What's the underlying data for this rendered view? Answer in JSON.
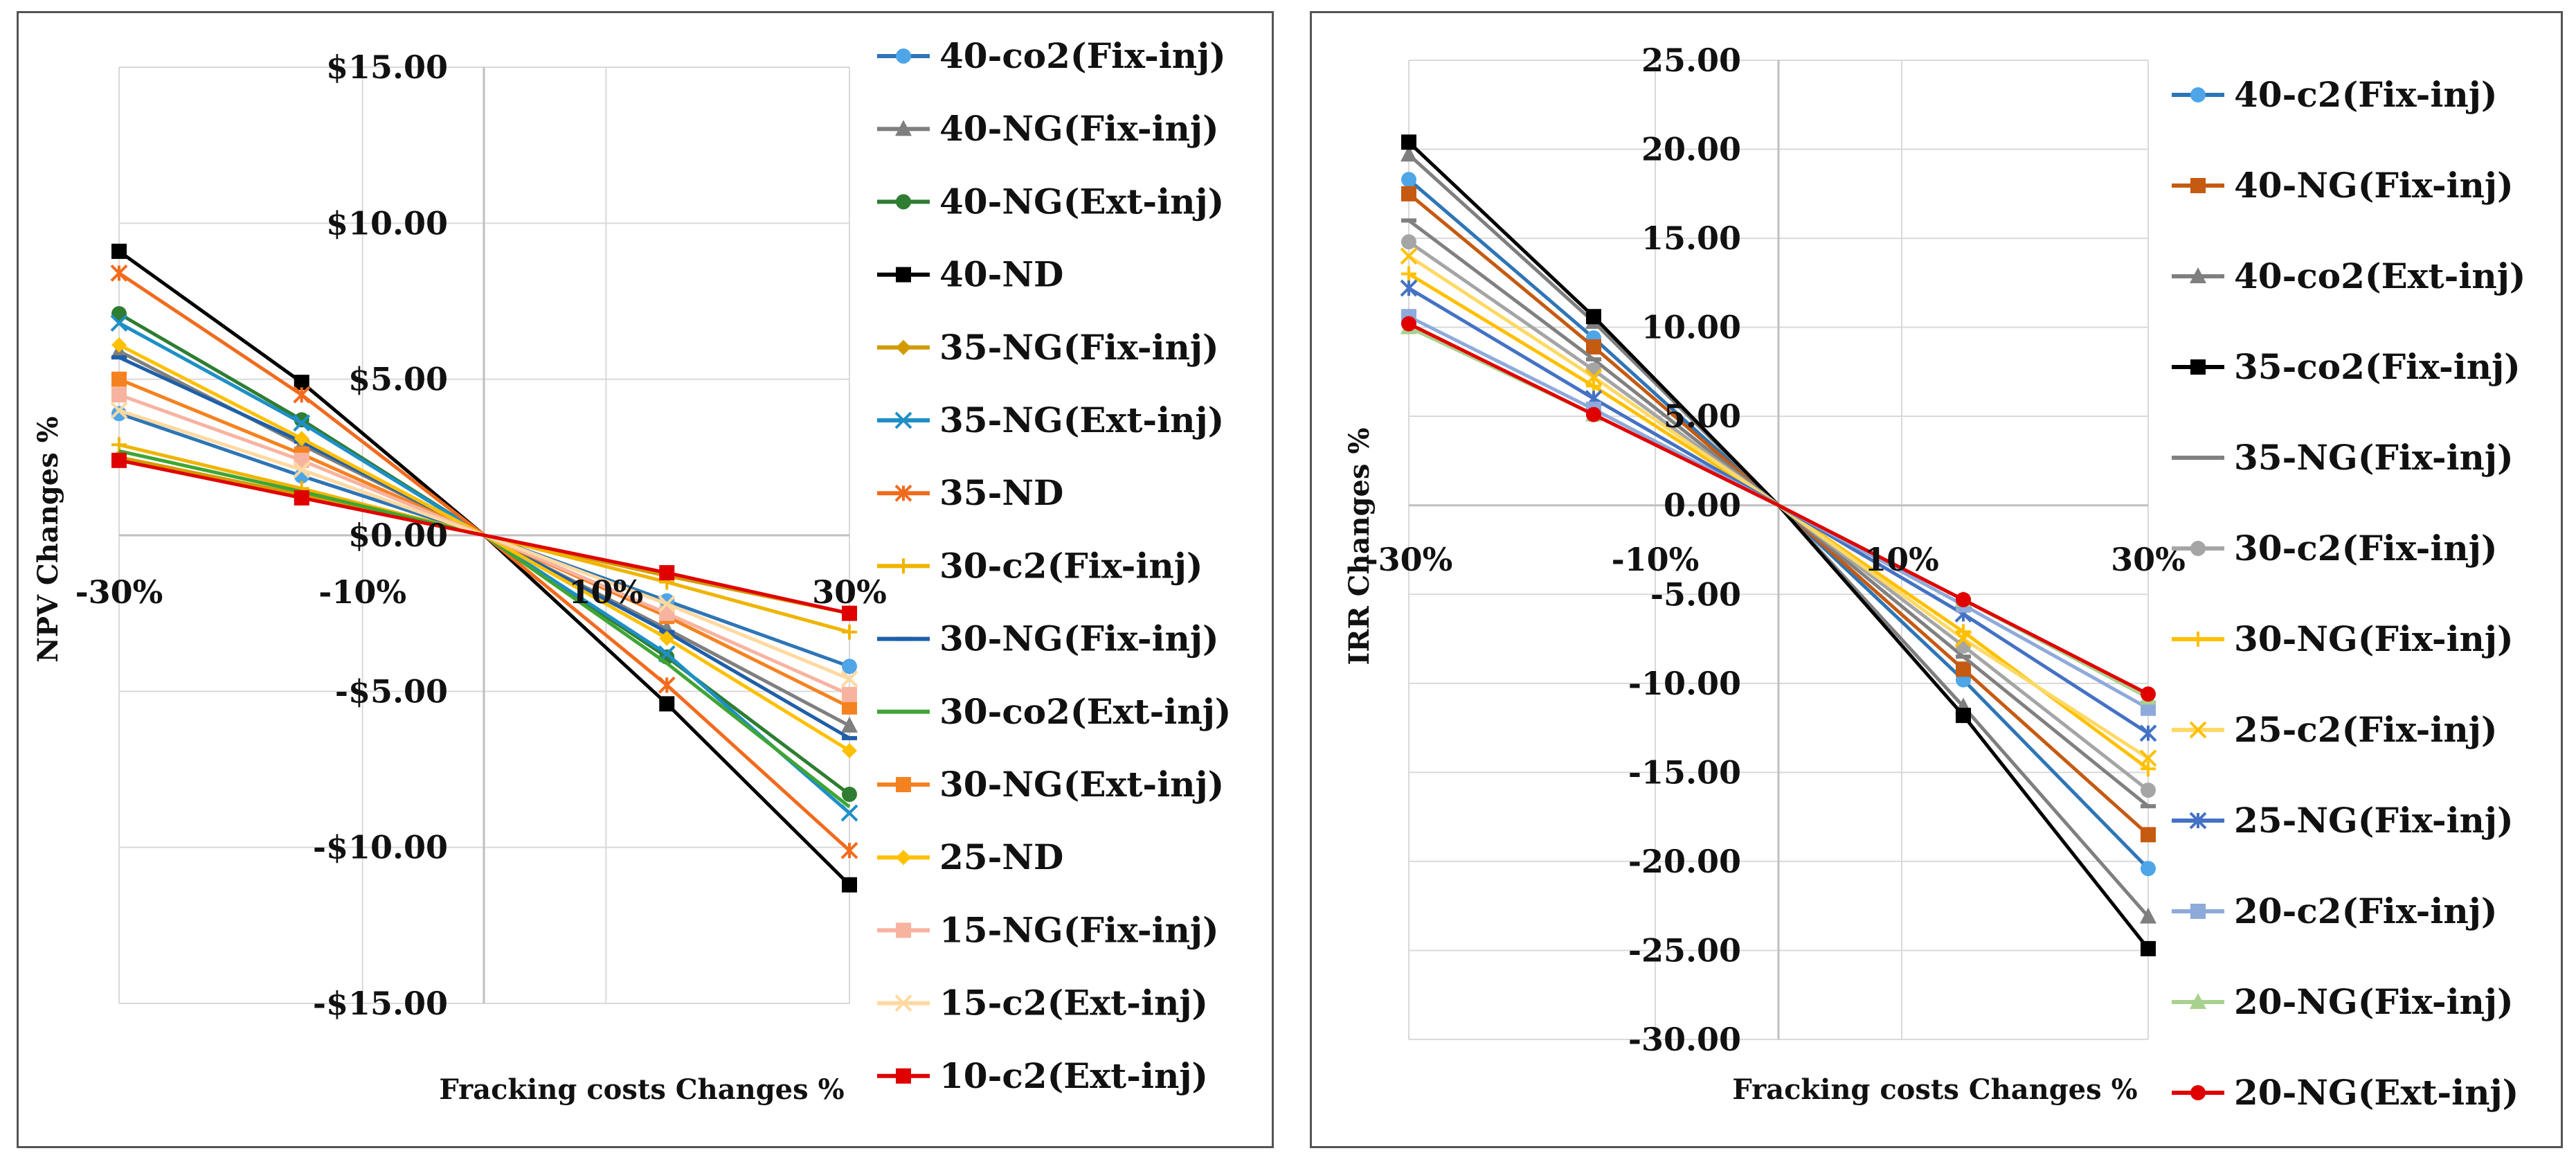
{
  "chart_data": [
    {
      "type": "line",
      "xlabel": "Fracking costs Changes %",
      "ylabel": "NPV Changes %",
      "x": [
        -30,
        -15,
        0,
        15,
        30
      ],
      "x_ticks": [
        "-30%",
        "-10%",
        "10%",
        "30%"
      ],
      "x_tick_values": [
        -30,
        -10,
        10,
        30
      ],
      "y_ticks": [
        "$15.00",
        "$10.00",
        "$5.00",
        "$0.00",
        "-$5.00",
        "-$10.00",
        "-$15.00"
      ],
      "y_tick_values": [
        15,
        10,
        5,
        0,
        -5,
        -10,
        -15
      ],
      "xlim": [
        -30,
        30
      ],
      "ylim": [
        -15,
        15
      ],
      "grid": true,
      "legend_position": "right",
      "series": [
        {
          "name": "40-co2(Fix-inj)",
          "color": "#2e75b6",
          "marker": "circle",
          "mcolor": "#4ea5e8",
          "values": [
            3.9,
            1.9,
            0,
            -2.1,
            -4.2
          ]
        },
        {
          "name": "40-NG(Fix-inj)",
          "color": "#7f7f7f",
          "marker": "triangle",
          "mcolor": "#7f7f7f",
          "values": [
            5.9,
            2.9,
            0,
            -3.0,
            -6.1
          ]
        },
        {
          "name": "40-NG(Ext-inj)",
          "color": "#2e7d32",
          "marker": "circle",
          "mcolor": "#2e7d32",
          "values": [
            7.1,
            3.7,
            0,
            -3.9,
            -8.3
          ]
        },
        {
          "name": "40-ND",
          "color": "#000000",
          "marker": "square",
          "mcolor": "#000000",
          "values": [
            9.1,
            4.9,
            0,
            -5.4,
            -11.2
          ]
        },
        {
          "name": "35-NG(Fix-inj)",
          "color": "#d39a00",
          "marker": "diamond",
          "mcolor": "#d39a00",
          "values": [
            2.5,
            1.3,
            0,
            -1.3,
            -2.5
          ]
        },
        {
          "name": "35-NG(Ext-inj)",
          "color": "#1f8fc6",
          "marker": "x",
          "mcolor": "#1f8fc6",
          "values": [
            6.8,
            3.6,
            0,
            -3.8,
            -8.9
          ]
        },
        {
          "name": "35-ND",
          "color": "#f26b1d",
          "marker": "star",
          "mcolor": "#f26b1d",
          "values": [
            8.4,
            4.5,
            0,
            -4.8,
            -10.1
          ]
        },
        {
          "name": "30-c2(Fix-inj)",
          "color": "#f0b400",
          "marker": "plus",
          "mcolor": "#f0b400",
          "values": [
            2.9,
            1.5,
            0,
            -1.5,
            -3.1
          ]
        },
        {
          "name": "30-NG(Fix-inj)",
          "color": "#1f5fa8",
          "marker": "dash",
          "mcolor": "#1f5fa8",
          "values": [
            5.7,
            3.0,
            0,
            -3.1,
            -6.5
          ]
        },
        {
          "name": "30-co2(Ext-inj)",
          "color": "#3fa535",
          "marker": "none",
          "mcolor": "#3fa535",
          "values": [
            2.7,
            1.4,
            0,
            -4.1,
            -8.7
          ]
        },
        {
          "name": "30-NG(Ext-inj)",
          "color": "#f58220",
          "marker": "square",
          "mcolor": "#f58220",
          "values": [
            5.0,
            2.6,
            0,
            -2.6,
            -5.5
          ]
        },
        {
          "name": "25-ND",
          "color": "#ffc000",
          "marker": "diamond",
          "mcolor": "#ffc000",
          "values": [
            6.1,
            3.1,
            0,
            -3.3,
            -6.9
          ]
        },
        {
          "name": "15-NG(Fix-inj)",
          "color": "#f8b3a0",
          "marker": "square",
          "mcolor": "#f8b3a0",
          "values": [
            4.5,
            2.4,
            0,
            -2.5,
            -5.1
          ]
        },
        {
          "name": "15-c2(Ext-inj)",
          "color": "#ffd9a0",
          "marker": "x",
          "mcolor": "#ffd9a0",
          "values": [
            4.0,
            2.1,
            0,
            -2.2,
            -4.6
          ]
        },
        {
          "name": "10-c2(Ext-inj)",
          "color": "#e00000",
          "marker": "square",
          "mcolor": "#e00000",
          "values": [
            2.4,
            1.2,
            0,
            -1.2,
            -2.5
          ]
        }
      ]
    },
    {
      "type": "line",
      "xlabel": "Fracking costs Changes %",
      "ylabel": "IRR Changes %",
      "x": [
        -30,
        -15,
        0,
        15,
        30
      ],
      "x_ticks": [
        "-30%",
        "-10%",
        "10%",
        "30%"
      ],
      "x_tick_values": [
        -30,
        -10,
        10,
        30
      ],
      "y_ticks": [
        "25.00",
        "20.00",
        "15.00",
        "10.00",
        "5.00",
        "0.00",
        "-5.00",
        "-10.00",
        "-15.00",
        "-20.00",
        "-25.00",
        "-30.00"
      ],
      "y_tick_values": [
        25,
        20,
        15,
        10,
        5,
        0,
        -5,
        -10,
        -15,
        -20,
        -25,
        -30
      ],
      "xlim": [
        -30,
        30
      ],
      "ylim": [
        -30,
        25
      ],
      "grid": true,
      "legend_position": "right",
      "series": [
        {
          "name": "40-c2(Fix-inj)",
          "color": "#2e75b6",
          "marker": "circle",
          "mcolor": "#4ea5e8",
          "values": [
            18.3,
            9.4,
            0,
            -9.8,
            -20.4
          ]
        },
        {
          "name": "40-NG(Fix-inj)",
          "color": "#c55a11",
          "marker": "square",
          "mcolor": "#c55a11",
          "values": [
            17.5,
            8.9,
            0,
            -9.2,
            -18.5
          ]
        },
        {
          "name": "40-co2(Ext-inj)",
          "color": "#7f7f7f",
          "marker": "triangle",
          "mcolor": "#7f7f7f",
          "values": [
            19.7,
            10.3,
            0,
            -11.3,
            -23.1
          ]
        },
        {
          "name": "35-co2(Fix-inj)",
          "color": "#000000",
          "marker": "square",
          "mcolor": "#000000",
          "values": [
            20.4,
            10.6,
            0,
            -11.8,
            -24.9
          ]
        },
        {
          "name": "35-NG(Fix-inj)",
          "color": "#808080",
          "marker": "dash",
          "mcolor": "#808080",
          "values": [
            16.0,
            8.2,
            0,
            -8.5,
            -16.9
          ]
        },
        {
          "name": "30-c2(Fix-inj)",
          "color": "#a5a5a5",
          "marker": "circle",
          "mcolor": "#a5a5a5",
          "values": [
            14.8,
            7.6,
            0,
            -7.9,
            -16.0
          ]
        },
        {
          "name": "30-NG(Fix-inj)",
          "color": "#ffc000",
          "marker": "plus",
          "mcolor": "#ffc000",
          "values": [
            13.0,
            6.7,
            0,
            -7.1,
            -14.8
          ]
        },
        {
          "name": "25-c2(Fix-inj)",
          "color": "#ffd966",
          "marker": "x",
          "mcolor": "#ffc000",
          "values": [
            14.0,
            7.2,
            0,
            -7.5,
            -14.2
          ]
        },
        {
          "name": "25-NG(Fix-inj)",
          "color": "#4472c4",
          "marker": "star",
          "mcolor": "#4472c4",
          "values": [
            12.2,
            6.0,
            0,
            -6.1,
            -12.8
          ]
        },
        {
          "name": "20-c2(Fix-inj)",
          "color": "#8eaadb",
          "marker": "square",
          "mcolor": "#8eaadb",
          "values": [
            10.6,
            5.4,
            0,
            -5.6,
            -11.4
          ]
        },
        {
          "name": "20-NG(Fix-inj)",
          "color": "#a9d18e",
          "marker": "triangle",
          "mcolor": "#a9d18e",
          "values": [
            10.0,
            5.1,
            0,
            -5.3,
            -10.8
          ]
        },
        {
          "name": "20-NG(Ext-inj)",
          "color": "#e00000",
          "marker": "circle",
          "mcolor": "#e00000",
          "values": [
            10.2,
            5.1,
            0,
            -5.3,
            -10.6
          ]
        }
      ]
    }
  ]
}
